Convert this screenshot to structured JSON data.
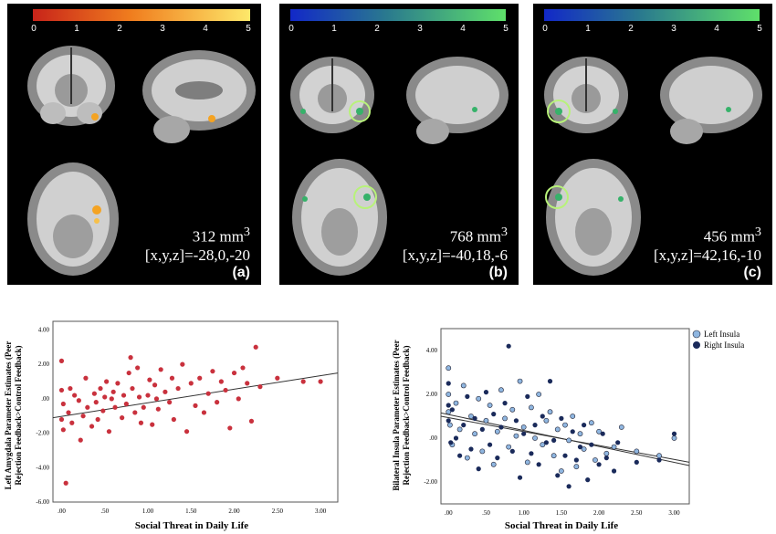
{
  "colors": {
    "warm_bar": [
      "#c8241a",
      "#f07d1e",
      "#fde86a"
    ],
    "cool_bar": [
      "#1228c8",
      "#2a7a8e",
      "#5fe06a"
    ],
    "marker_red": "#c9313d",
    "marker_light": "#8fb6e0",
    "marker_dark": "#1a2a5a"
  },
  "colorbar_ticks": [
    "0",
    "1",
    "2",
    "3",
    "4",
    "5"
  ],
  "panels": [
    {
      "volume": "312 mm",
      "sup": "3",
      "coord": "[x,y,z]=-28,0,-20",
      "label": "(a)"
    },
    {
      "volume": "768 mm",
      "sup": "3",
      "coord": "[x,y,z]=-40,18,-6",
      "label": "(b)"
    },
    {
      "volume": "456 mm",
      "sup": "3",
      "coord": "[x,y,z]=42,16,-10",
      "label": "(c)"
    }
  ],
  "chart_data": [
    {
      "type": "scatter",
      "xlabel": "Social Threat in Daily Life",
      "ylabel": [
        "Left Amygdala Parameter Estimates (Peer",
        "Rejection Feedback>Control Feedback)"
      ],
      "xticks": [
        ".00",
        ".50",
        "1.00",
        "1.50",
        "2.00",
        "2.50",
        "3.00"
      ],
      "yticks": [
        "4.00",
        "2.00",
        ".00",
        "-2.00",
        "-4.00",
        "-6.00"
      ],
      "xlim": [
        -0.1,
        3.2
      ],
      "ylim": [
        -6,
        4.5
      ],
      "fit": [
        [
          -0.1,
          -1.1
        ],
        [
          3.2,
          1.5
        ]
      ],
      "points": [
        [
          0,
          2.2
        ],
        [
          0,
          0.5
        ],
        [
          0,
          -1.2
        ],
        [
          0.02,
          -0.3
        ],
        [
          0.02,
          -1.8
        ],
        [
          0.05,
          -4.9
        ],
        [
          0.08,
          -0.8
        ],
        [
          0.1,
          0.6
        ],
        [
          0.12,
          -1.4
        ],
        [
          0.15,
          0.2
        ],
        [
          0.2,
          -0.1
        ],
        [
          0.22,
          -2.4
        ],
        [
          0.25,
          -1.0
        ],
        [
          0.28,
          1.2
        ],
        [
          0.3,
          -0.5
        ],
        [
          0.35,
          -1.6
        ],
        [
          0.38,
          0.3
        ],
        [
          0.4,
          -0.2
        ],
        [
          0.42,
          -1.2
        ],
        [
          0.45,
          0.6
        ],
        [
          0.48,
          -0.7
        ],
        [
          0.5,
          0.1
        ],
        [
          0.52,
          1.0
        ],
        [
          0.55,
          -1.9
        ],
        [
          0.58,
          0.0
        ],
        [
          0.6,
          0.4
        ],
        [
          0.62,
          -0.5
        ],
        [
          0.65,
          0.9
        ],
        [
          0.7,
          -1.1
        ],
        [
          0.72,
          0.2
        ],
        [
          0.75,
          -0.3
        ],
        [
          0.78,
          1.5
        ],
        [
          0.8,
          2.4
        ],
        [
          0.82,
          0.6
        ],
        [
          0.85,
          -0.8
        ],
        [
          0.88,
          1.8
        ],
        [
          0.9,
          0.1
        ],
        [
          0.92,
          -1.4
        ],
        [
          0.95,
          -0.5
        ],
        [
          1.0,
          0.2
        ],
        [
          1.02,
          1.1
        ],
        [
          1.05,
          -1.5
        ],
        [
          1.08,
          0.8
        ],
        [
          1.1,
          0.0
        ],
        [
          1.12,
          -0.6
        ],
        [
          1.15,
          1.7
        ],
        [
          1.2,
          0.4
        ],
        [
          1.25,
          -0.2
        ],
        [
          1.28,
          1.2
        ],
        [
          1.3,
          -1.2
        ],
        [
          1.35,
          0.6
        ],
        [
          1.4,
          2.0
        ],
        [
          1.45,
          -1.9
        ],
        [
          1.5,
          0.9
        ],
        [
          1.55,
          -0.4
        ],
        [
          1.6,
          1.2
        ],
        [
          1.65,
          -0.8
        ],
        [
          1.7,
          0.3
        ],
        [
          1.75,
          1.6
        ],
        [
          1.8,
          -0.2
        ],
        [
          1.85,
          1.0
        ],
        [
          1.9,
          0.5
        ],
        [
          1.95,
          -1.7
        ],
        [
          2.0,
          1.5
        ],
        [
          2.05,
          0.0
        ],
        [
          2.1,
          1.8
        ],
        [
          2.15,
          0.9
        ],
        [
          2.2,
          -1.3
        ],
        [
          2.25,
          3.0
        ],
        [
          2.3,
          0.7
        ],
        [
          2.5,
          1.2
        ],
        [
          2.8,
          1.0
        ],
        [
          3.0,
          1.0
        ]
      ]
    },
    {
      "type": "scatter",
      "xlabel": "Social Threat in Daily Life",
      "ylabel": [
        "Bilateral Insula Parameter Estimates (Peer",
        "Rejection Feedback>Control Feedback)"
      ],
      "xticks": [
        ".00",
        ".50",
        "1.00",
        "1.50",
        "2.00",
        "2.50",
        "3.00"
      ],
      "yticks": [
        "4.00",
        "2.00",
        ".00",
        "-2.00"
      ],
      "xlim": [
        -0.1,
        3.2
      ],
      "ylim": [
        -3.0,
        5.0
      ],
      "legend": [
        "Left Insula",
        "Right Insula"
      ],
      "fit_left": [
        [
          -0.1,
          1.0
        ],
        [
          3.2,
          -1.1
        ]
      ],
      "fit_right": [
        [
          -0.1,
          1.15
        ],
        [
          3.2,
          -1.25
        ]
      ],
      "points_left": [
        [
          0,
          3.2
        ],
        [
          0,
          2.0
        ],
        [
          0,
          1.2
        ],
        [
          0.02,
          0.6
        ],
        [
          0.05,
          -0.3
        ],
        [
          0.1,
          1.6
        ],
        [
          0.15,
          0.4
        ],
        [
          0.2,
          2.4
        ],
        [
          0.25,
          -0.9
        ],
        [
          0.3,
          1.0
        ],
        [
          0.35,
          0.2
        ],
        [
          0.4,
          1.8
        ],
        [
          0.45,
          -0.6
        ],
        [
          0.5,
          0.8
        ],
        [
          0.55,
          1.5
        ],
        [
          0.6,
          -1.2
        ],
        [
          0.65,
          0.3
        ],
        [
          0.7,
          2.2
        ],
        [
          0.75,
          0.9
        ],
        [
          0.8,
          -0.4
        ],
        [
          0.85,
          1.3
        ],
        [
          0.9,
          0.1
        ],
        [
          0.95,
          2.6
        ],
        [
          1.0,
          0.5
        ],
        [
          1.05,
          -1.1
        ],
        [
          1.1,
          1.4
        ],
        [
          1.15,
          0.0
        ],
        [
          1.2,
          2.0
        ],
        [
          1.25,
          -0.3
        ],
        [
          1.3,
          0.8
        ],
        [
          1.35,
          1.2
        ],
        [
          1.4,
          -0.8
        ],
        [
          1.45,
          0.4
        ],
        [
          1.5,
          -1.5
        ],
        [
          1.55,
          0.6
        ],
        [
          1.6,
          -0.1
        ],
        [
          1.65,
          1.0
        ],
        [
          1.7,
          -1.3
        ],
        [
          1.75,
          0.2
        ],
        [
          1.8,
          -0.5
        ],
        [
          1.9,
          0.7
        ],
        [
          1.95,
          -1.0
        ],
        [
          2.0,
          0.3
        ],
        [
          2.1,
          -0.7
        ],
        [
          2.2,
          -0.4
        ],
        [
          2.3,
          0.5
        ],
        [
          2.5,
          -0.6
        ],
        [
          2.8,
          -0.8
        ],
        [
          3.0,
          0.0
        ]
      ],
      "points_right": [
        [
          0,
          2.5
        ],
        [
          0,
          1.5
        ],
        [
          0,
          0.8
        ],
        [
          0.03,
          -0.2
        ],
        [
          0.05,
          1.3
        ],
        [
          0.1,
          0.0
        ],
        [
          0.15,
          -0.8
        ],
        [
          0.2,
          0.6
        ],
        [
          0.25,
          1.9
        ],
        [
          0.3,
          -0.5
        ],
        [
          0.35,
          0.9
        ],
        [
          0.4,
          -1.4
        ],
        [
          0.45,
          0.4
        ],
        [
          0.5,
          2.1
        ],
        [
          0.55,
          -0.3
        ],
        [
          0.6,
          1.1
        ],
        [
          0.65,
          -0.9
        ],
        [
          0.7,
          0.5
        ],
        [
          0.75,
          1.6
        ],
        [
          0.8,
          4.2
        ],
        [
          0.85,
          -0.6
        ],
        [
          0.9,
          0.8
        ],
        [
          0.95,
          -1.8
        ],
        [
          1.0,
          0.2
        ],
        [
          1.05,
          1.9
        ],
        [
          1.1,
          -0.7
        ],
        [
          1.15,
          0.6
        ],
        [
          1.2,
          -1.2
        ],
        [
          1.25,
          1.0
        ],
        [
          1.3,
          -0.2
        ],
        [
          1.35,
          2.6
        ],
        [
          1.4,
          -0.1
        ],
        [
          1.45,
          -1.7
        ],
        [
          1.5,
          0.9
        ],
        [
          1.55,
          -0.8
        ],
        [
          1.6,
          -2.2
        ],
        [
          1.65,
          0.3
        ],
        [
          1.7,
          -1.0
        ],
        [
          1.75,
          -0.4
        ],
        [
          1.8,
          0.6
        ],
        [
          1.85,
          -1.9
        ],
        [
          1.9,
          -0.3
        ],
        [
          2.0,
          -1.2
        ],
        [
          2.05,
          0.2
        ],
        [
          2.1,
          -0.9
        ],
        [
          2.2,
          -1.5
        ],
        [
          2.25,
          -0.2
        ],
        [
          2.5,
          -1.1
        ],
        [
          2.8,
          -1.0
        ],
        [
          3.0,
          0.2
        ]
      ]
    }
  ]
}
